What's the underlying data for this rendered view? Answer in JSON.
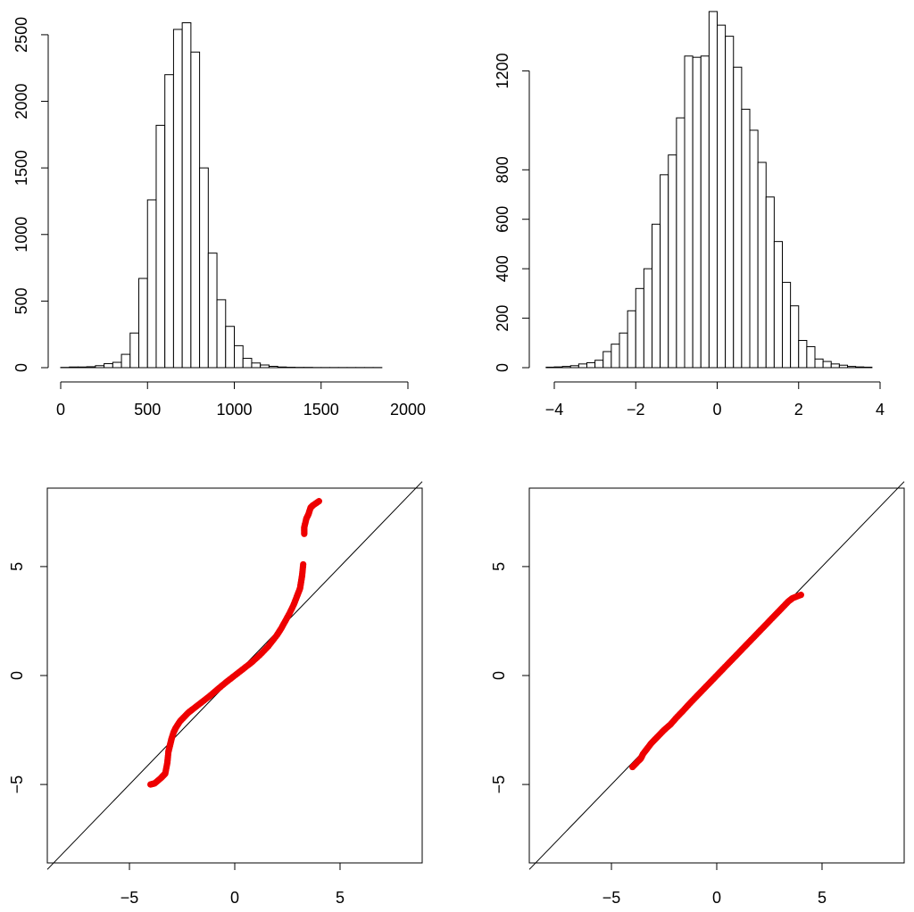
{
  "chart_data": [
    {
      "type": "bar",
      "panel": "top-left",
      "bin_edges": [
        0,
        50,
        100,
        150,
        200,
        250,
        300,
        350,
        400,
        450,
        500,
        550,
        600,
        650,
        700,
        750,
        800,
        850,
        900,
        950,
        1000,
        1050,
        1100,
        1150,
        1200,
        1250,
        1300,
        1350,
        1400,
        1450,
        1500,
        1550,
        1600,
        1650,
        1700,
        1750,
        1800,
        1850
      ],
      "values": [
        2,
        5,
        5,
        7,
        15,
        30,
        40,
        100,
        260,
        670,
        1260,
        1820,
        2200,
        2540,
        2590,
        2370,
        1500,
        860,
        510,
        310,
        165,
        70,
        35,
        20,
        10,
        5,
        3,
        2,
        2,
        1,
        1,
        1,
        1,
        1,
        1,
        1,
        1
      ],
      "x_ticks": [
        "0",
        "500",
        "1000",
        "1500",
        "2000"
      ],
      "x_tick_values": [
        0,
        500,
        1000,
        1500,
        2000
      ],
      "y_ticks": [
        "0",
        "500",
        "1000",
        "1500",
        "2000",
        "2500"
      ],
      "y_tick_values": [
        0,
        500,
        1000,
        1500,
        2000,
        2500
      ],
      "xlim": [
        0,
        2000
      ],
      "ylim": [
        0,
        2600
      ]
    },
    {
      "type": "bar",
      "panel": "top-right",
      "bin_edges": [
        -4.2,
        -4.0,
        -3.8,
        -3.6,
        -3.4,
        -3.2,
        -3.0,
        -2.8,
        -2.6,
        -2.4,
        -2.2,
        -2.0,
        -1.8,
        -1.6,
        -1.4,
        -1.2,
        -1.0,
        -0.8,
        -0.6,
        -0.4,
        -0.2,
        0.0,
        0.2,
        0.4,
        0.6,
        0.8,
        1.0,
        1.2,
        1.4,
        1.6,
        1.8,
        2.0,
        2.2,
        2.4,
        2.6,
        2.8,
        3.0,
        3.2,
        3.4,
        3.6,
        3.8
      ],
      "values": [
        2,
        3,
        5,
        8,
        15,
        20,
        30,
        65,
        95,
        140,
        230,
        320,
        400,
        580,
        780,
        860,
        1010,
        1260,
        1255,
        1260,
        1440,
        1385,
        1340,
        1215,
        1045,
        960,
        830,
        690,
        510,
        345,
        250,
        110,
        85,
        35,
        25,
        15,
        10,
        5,
        3,
        2
      ],
      "x_ticks": [
        "−4",
        "−2",
        "0",
        "2",
        "4"
      ],
      "x_tick_values": [
        -4,
        -2,
        0,
        2,
        4
      ],
      "y_ticks": [
        "0",
        "200",
        "400",
        "600",
        "800",
        "1200"
      ],
      "y_tick_values": [
        0,
        200,
        400,
        600,
        800,
        1200
      ],
      "xlim": [
        -4,
        4
      ],
      "ylim": [
        0,
        1400
      ]
    },
    {
      "type": "scatter",
      "panel": "bottom-left",
      "point_color": "#ee0000",
      "reference_line": "y = x",
      "xlim": [
        -8.9,
        8.9
      ],
      "ylim": [
        -8.6,
        8.6
      ],
      "x_ticks": [
        "−5",
        "0",
        "5"
      ],
      "x_tick_values": [
        -5,
        0,
        5
      ],
      "y_ticks": [
        "−5",
        "0",
        "5"
      ],
      "y_tick_values": [
        -5,
        0,
        5
      ],
      "x": [
        -4.0,
        -3.8,
        -3.5,
        -3.4,
        -3.3,
        -3.2,
        -3.15,
        -3.1,
        -3.05,
        -3.0,
        -2.9,
        -2.8,
        -2.6,
        -2.4,
        -2.2,
        -2.0,
        -1.6,
        -1.2,
        -0.8,
        -0.4,
        0.0,
        0.4,
        0.8,
        1.2,
        1.6,
        2.0,
        2.2,
        2.4,
        2.6,
        2.8,
        2.9,
        3.0,
        3.1,
        3.15,
        3.2,
        3.25,
        3.3,
        3.3,
        3.4,
        3.5,
        3.6,
        3.7,
        4.0
      ],
      "y": [
        -5.0,
        -4.95,
        -4.7,
        -4.6,
        -4.5,
        -4.0,
        -3.5,
        -3.3,
        -3.1,
        -2.9,
        -2.6,
        -2.4,
        -2.1,
        -1.9,
        -1.7,
        -1.55,
        -1.25,
        -0.95,
        -0.62,
        -0.3,
        0.0,
        0.3,
        0.6,
        0.95,
        1.35,
        1.85,
        2.15,
        2.5,
        2.85,
        3.25,
        3.5,
        3.75,
        4.0,
        4.3,
        4.6,
        5.1,
        6.5,
        6.8,
        7.2,
        7.4,
        7.7,
        7.8,
        8.0
      ]
    },
    {
      "type": "scatter",
      "panel": "bottom-right",
      "point_color": "#ee0000",
      "reference_line": "y = x",
      "xlim": [
        -8.9,
        8.9
      ],
      "ylim": [
        -8.6,
        8.6
      ],
      "x_ticks": [
        "−5",
        "0",
        "5"
      ],
      "x_tick_values": [
        -5,
        0,
        5
      ],
      "y_ticks": [
        "−5",
        "0",
        "5"
      ],
      "y_tick_values": [
        -5,
        0,
        5
      ],
      "x": [
        -4.0,
        -3.7,
        -3.6,
        -3.5,
        -3.3,
        -3.1,
        -2.9,
        -2.7,
        -2.5,
        -2.2,
        -1.9,
        -1.6,
        -1.3,
        -1.0,
        -0.7,
        -0.4,
        -0.1,
        0.2,
        0.5,
        0.8,
        1.1,
        1.4,
        1.7,
        2.0,
        2.3,
        2.6,
        2.8,
        3.0,
        3.2,
        3.4,
        3.6,
        4.0
      ],
      "y": [
        -4.2,
        -3.9,
        -3.8,
        -3.6,
        -3.35,
        -3.1,
        -2.9,
        -2.7,
        -2.5,
        -2.25,
        -1.92,
        -1.62,
        -1.3,
        -1.0,
        -0.7,
        -0.4,
        -0.1,
        0.2,
        0.5,
        0.8,
        1.1,
        1.4,
        1.7,
        2.0,
        2.3,
        2.6,
        2.8,
        3.0,
        3.2,
        3.4,
        3.55,
        3.7
      ]
    }
  ]
}
